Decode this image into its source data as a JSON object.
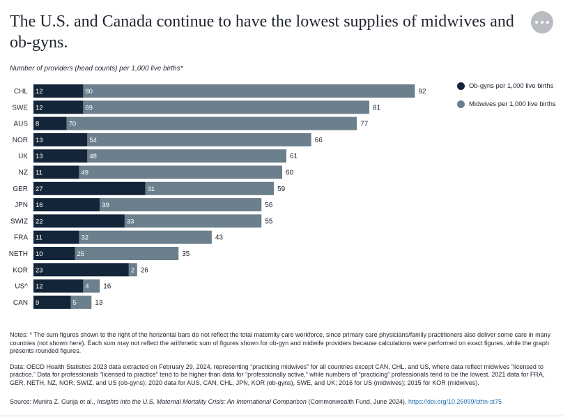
{
  "header": {
    "title": "The U.S. and Canada continue to have the lowest supplies of midwives and ob-gyns.",
    "more_icon": "more-horizontal-icon"
  },
  "subtitle": "Number of providers (head counts) per 1,000 live births*",
  "legend": [
    {
      "label": "Ob-gyns per 1,000 live births",
      "color": "#14253a"
    },
    {
      "label": "Midwives per 1,000 live births",
      "color": "#6b7f8c"
    }
  ],
  "chart_data": {
    "type": "bar",
    "orientation": "horizontal",
    "stacked": true,
    "categories": [
      "CHL",
      "SWE",
      "AUS",
      "NOR",
      "UK",
      "NZ",
      "GER",
      "JPN",
      "SWIZ",
      "FRA",
      "NETH",
      "KOR",
      "US^",
      "CAN"
    ],
    "series": [
      {
        "name": "Ob-gyns per 1,000 live births",
        "color": "#14253a",
        "values": [
          12,
          12,
          8,
          13,
          13,
          11,
          27,
          16,
          22,
          11,
          10,
          23,
          12,
          9
        ]
      },
      {
        "name": "Midwives per 1,000 live births",
        "color": "#6b7f8c",
        "values": [
          80,
          69,
          70,
          54,
          48,
          49,
          31,
          39,
          33,
          32,
          25,
          2,
          4,
          5
        ]
      }
    ],
    "totals": [
      92,
      81,
      77,
      66,
      61,
      60,
      59,
      56,
      55,
      43,
      35,
      26,
      16,
      13
    ],
    "legend_position": "top-right",
    "grid": false
  },
  "notes": {
    "note1": "Notes: * The sum figures shown to the right of the horizontal bars do not reflect the total maternity care workforce, since primary care physicians/family practitioners also deliver some care in many countries (not shown here). Each sum may not reflect the arithmetic sum of figures shown for ob-gyn and midwife providers because calculations were performed on exact figures, while the graph presents rounded figures.",
    "note2": "Data: OECD Health Statistics 2023 data extracted on February 29, 2024, representing “practicing midwives” for all countries except CAN, CHL, and US, where data reflect midwives “licensed to practice.” Data for professionals “licensed to practice” tend to be higher than data for “professionally active,” while numbers of “practicing” professionals tend to be the lowest. 2021 data for FRA, GER, NETH, NZ, NOR, SWIZ, and US (ob-gyns); 2020 data for AUS, CAN, CHL, JPN, KOR (ob-gyns), SWE, and UK; 2016 for US (midwives); 2015 for KOR (midwives)."
  },
  "source": {
    "prefix": "Source: Munira Z. Gunja et al., ",
    "title": "Insights into the U.S. Maternal Mortality Crisis: An International Comparison",
    "suffix": " (Commonwealth Fund, June 2024). ",
    "link": "https://doi.org/10.26099/cthn-st75"
  }
}
